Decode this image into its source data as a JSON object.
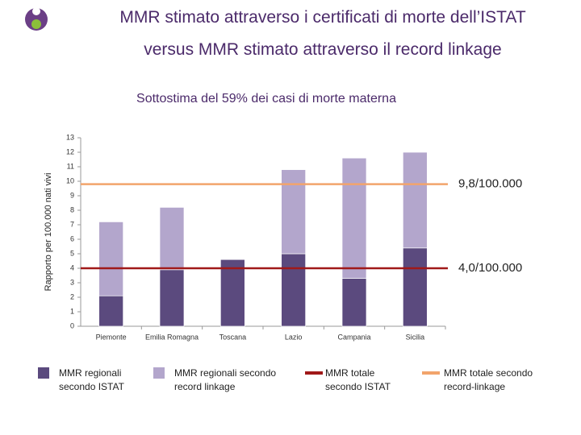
{
  "chart_data": {
    "type": "bar",
    "stacked": true,
    "title": [
      "MMR stimato attraverso i certificati di morte dell’ISTAT",
      "versus MMR stimato attraverso il record linkage"
    ],
    "subtitle": "Sottostima del 59% dei casi di morte materna",
    "y_label": "Rapporto per 100.000 nati vivi",
    "categories": [
      "Piemonte",
      "Emilia Romagna",
      "Toscana",
      "Lazio",
      "Campania",
      "Sicilia"
    ],
    "series": [
      {
        "name": "MMR regionali secondo ISTAT",
        "color": "#5b4a7e",
        "values": [
          2.1,
          3.9,
          4.6,
          5.0,
          3.3,
          5.4
        ]
      },
      {
        "name": "MMR regionali secondo record linkage",
        "color": "#b3a6cc",
        "values": [
          5.1,
          4.3,
          0,
          5.8,
          8.3,
          6.6
        ]
      }
    ],
    "reference_lines": [
      {
        "name": "MMR totale secondo ISTAT",
        "color": "#a01919",
        "value": 4.0,
        "label": "4,0/100.000"
      },
      {
        "name": "MMR totale secondo record-linkage",
        "color": "#f2a46c",
        "value": 9.8,
        "label": "9,8/100.000"
      }
    ],
    "ylim": [
      0,
      13
    ],
    "yticks": [
      0,
      1,
      2,
      3,
      4,
      5,
      6,
      7,
      8,
      9,
      10,
      11,
      12,
      13
    ]
  }
}
